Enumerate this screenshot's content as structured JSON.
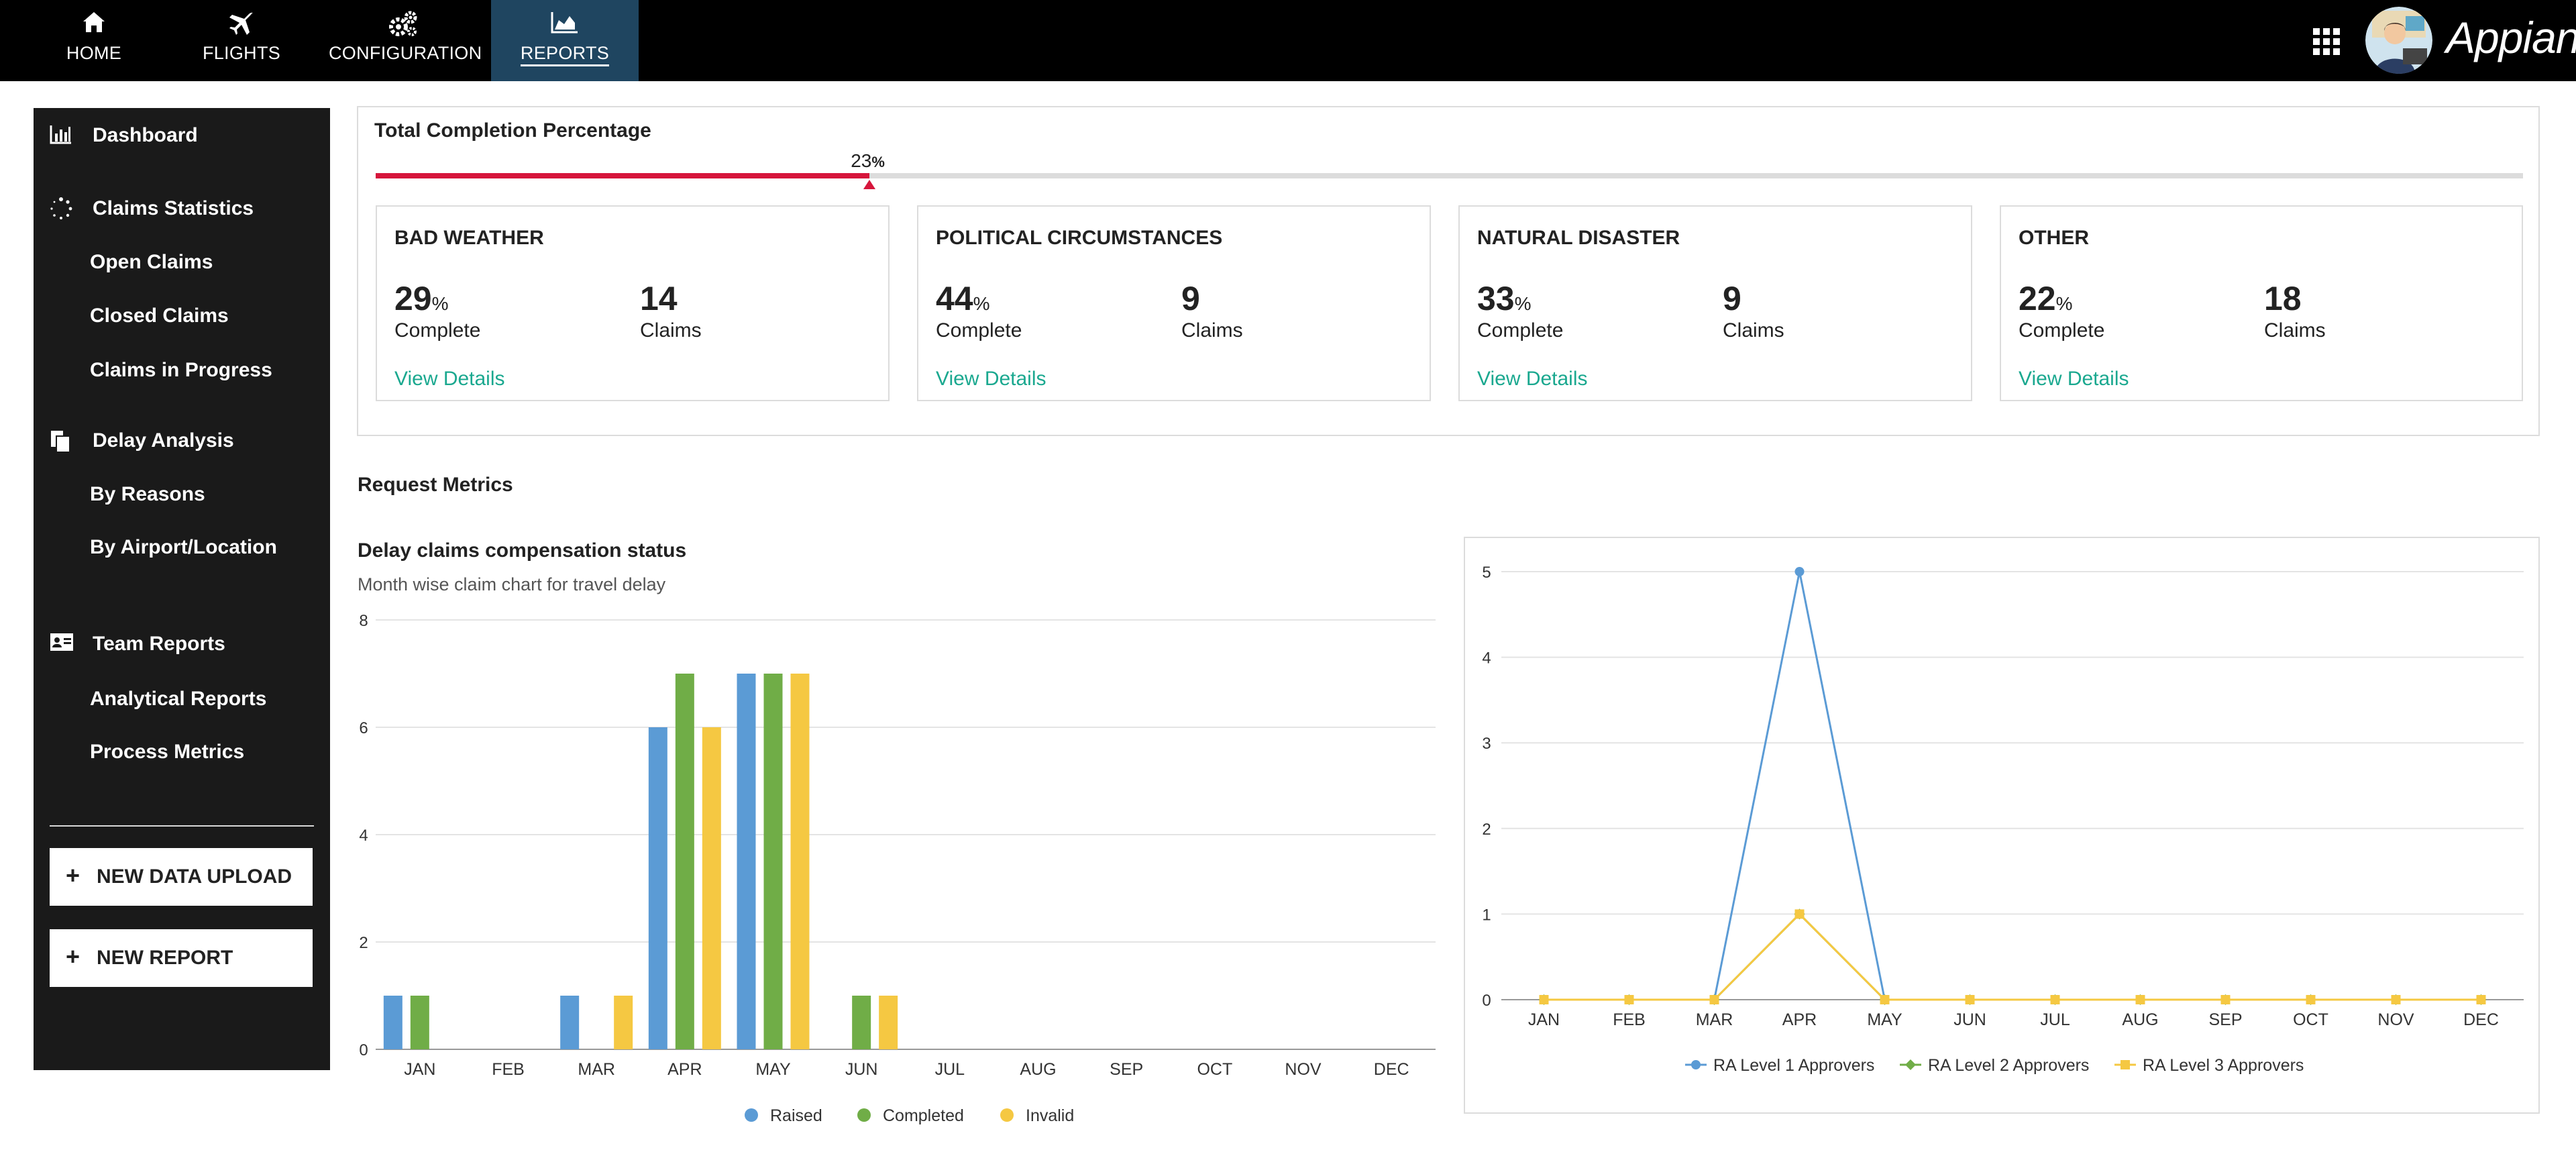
{
  "nav": {
    "tabs": [
      {
        "label": "HOME",
        "icon": "home-icon"
      },
      {
        "label": "FLIGHTS",
        "icon": "airplane-icon"
      },
      {
        "label": "CONFIGURATION",
        "icon": "gears-icon"
      },
      {
        "label": "REPORTS",
        "icon": "area-chart-icon",
        "active": true
      }
    ],
    "brand": "Appian",
    "grid_icon": "app-grid-icon",
    "avatar_icon": "user-avatar-icon"
  },
  "sidebar": {
    "dashboard": {
      "label": "Dashboard",
      "icon": "bar-chart-icon"
    },
    "claims_statistics": {
      "label": "Claims Statistics",
      "icon": "spinner-icon"
    },
    "open_claims": "Open Claims",
    "closed_claims": "Closed Claims",
    "claims_in_progress": "Claims in Progress",
    "delay_analysis": {
      "label": "Delay Analysis",
      "icon": "copy-icon"
    },
    "by_reasons": "By Reasons",
    "by_airport": "By Airport/Location",
    "team_reports": {
      "label": "Team Reports",
      "icon": "id-card-icon"
    },
    "analytical_reports": "Analytical Reports",
    "process_metrics": "Process Metrics",
    "new_data_upload": "NEW DATA UPLOAD",
    "new_report": "NEW REPORT",
    "plus_icon": "+"
  },
  "completion": {
    "title": "Total Completion Percentage",
    "value": 23,
    "value_text": "23",
    "unit": "%",
    "bar_color": "#d6163c"
  },
  "categories": [
    {
      "name": "BAD WEATHER",
      "pct": "29",
      "unit": "%",
      "complete_label": "Complete",
      "count": "14",
      "claims_label": "Claims",
      "link": "View Details"
    },
    {
      "name": "POLITICAL CIRCUMSTANCES",
      "pct": "44",
      "unit": "%",
      "complete_label": "Complete",
      "count": "9",
      "claims_label": "Claims",
      "link": "View Details"
    },
    {
      "name": "NATURAL DISASTER",
      "pct": "33",
      "unit": "%",
      "complete_label": "Complete",
      "count": "9",
      "claims_label": "Claims",
      "link": "View Details"
    },
    {
      "name": "OTHER",
      "pct": "22",
      "unit": "%",
      "complete_label": "Complete",
      "count": "18",
      "claims_label": "Claims",
      "link": "View Details"
    }
  ],
  "request_metrics": {
    "title": "Request Metrics"
  },
  "chart_data": [
    {
      "type": "bar",
      "title": "Delay claims compensation status",
      "subtitle": "Month wise claim chart for travel delay",
      "categories": [
        "JAN",
        "FEB",
        "MAR",
        "APR",
        "MAY",
        "JUN",
        "JUL",
        "AUG",
        "SEP",
        "OCT",
        "NOV",
        "DEC"
      ],
      "series": [
        {
          "name": "Raised",
          "color": "#5b9bd5",
          "values": [
            1,
            0,
            1,
            6,
            7,
            0,
            0,
            0,
            0,
            0,
            0,
            0
          ]
        },
        {
          "name": "Completed",
          "color": "#70ad47",
          "values": [
            1,
            0,
            0,
            7,
            7,
            1,
            0,
            0,
            0,
            0,
            0,
            0
          ]
        },
        {
          "name": "Invalid",
          "color": "#f5c842",
          "values": [
            0,
            0,
            1,
            6,
            7,
            1,
            0,
            0,
            0,
            0,
            0,
            0
          ]
        }
      ],
      "ylim": [
        0,
        8
      ],
      "yticks": [
        0,
        2,
        4,
        6,
        8
      ],
      "grid": true,
      "legend": "bottom"
    },
    {
      "type": "line",
      "categories": [
        "JAN",
        "FEB",
        "MAR",
        "APR",
        "MAY",
        "JUN",
        "JUL",
        "AUG",
        "SEP",
        "OCT",
        "NOV",
        "DEC"
      ],
      "series": [
        {
          "name": "RA Level 1 Approvers",
          "color": "#5b9bd5",
          "marker": "circle",
          "values": [
            0,
            0,
            0,
            5,
            0,
            0,
            0,
            0,
            0,
            0,
            0,
            0
          ]
        },
        {
          "name": "RA Level 2 Approvers",
          "color": "#70ad47",
          "marker": "diamond",
          "values": [
            0,
            0,
            0,
            1,
            0,
            0,
            0,
            0,
            0,
            0,
            0,
            0
          ]
        },
        {
          "name": "RA Level 3 Approvers",
          "color": "#f5c842",
          "marker": "square",
          "values": [
            0,
            0,
            0,
            1,
            0,
            0,
            0,
            0,
            0,
            0,
            0,
            0
          ]
        }
      ],
      "ylim": [
        0,
        5
      ],
      "yticks": [
        0,
        1,
        2,
        3,
        4,
        5
      ],
      "grid": true,
      "legend": "bottom"
    }
  ]
}
